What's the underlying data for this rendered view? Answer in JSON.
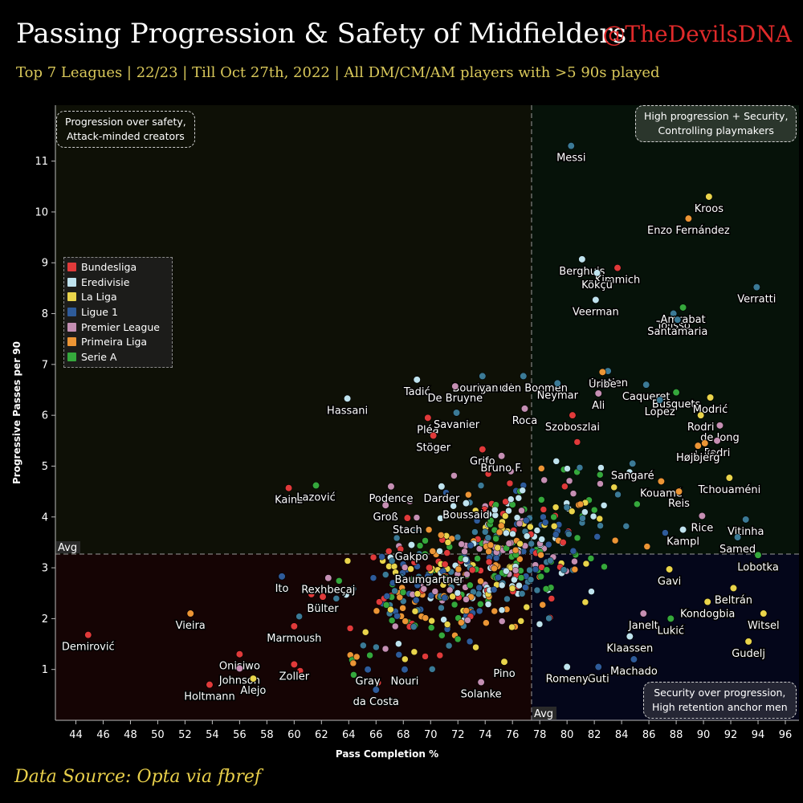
{
  "header": {
    "title": "Passing Progression & Safety of Midfielders",
    "handle": "@TheDevilsDNA",
    "subtitle": "Top 7 Leagues | 22/23 | Till Oct 27th, 2022 | All DM/CM/AM players with >5 90s played"
  },
  "footer": {
    "source": "Data Source: Opta via fbref"
  },
  "quadrants": {
    "top_left": [
      "Progression over safety,",
      "Attack-minded creators"
    ],
    "top_right": [
      "High progression + Security,",
      "Controlling playmakers"
    ],
    "bottom_right": [
      "Security over progression,",
      "High retention anchor men"
    ]
  },
  "colors": {
    "Bundesliga": "#e03a3a",
    "Eredivisie": "#bfe3ee",
    "La Liga": "#e9d44b",
    "Ligue 1": "#2e5b9a",
    "Premier League": "#c58fb3",
    "Primeira Liga": "#ec9535",
    "Serie A": "#35a83c",
    "Unlabeled": "#3b7a96"
  },
  "chart_data": {
    "type": "scatter",
    "title": "Passing Progression & Safety of Midfielders",
    "xlabel": "Pass Completion %",
    "ylabel": "Progressive Passes per 90",
    "xlim": [
      42.5,
      97
    ],
    "ylim": [
      0,
      12.1
    ],
    "x_ticks": [
      44,
      46,
      48,
      50,
      52,
      54,
      56,
      58,
      60,
      62,
      64,
      66,
      68,
      70,
      72,
      74,
      76,
      78,
      80,
      82,
      84,
      86,
      88,
      90,
      92,
      94,
      96
    ],
    "y_ticks": [
      1,
      2,
      3,
      4,
      5,
      6,
      7,
      8,
      9,
      10,
      11
    ],
    "avg_x": 77.4,
    "avg_y": 3.27,
    "avg_label": "Avg",
    "legend": [
      "Bundesliga",
      "Eredivisie",
      "La Liga",
      "Ligue 1",
      "Premier League",
      "Primeira Liga",
      "Serie A"
    ],
    "legend_position": "left",
    "labeled_points": [
      {
        "name": "Messi",
        "x": 80.3,
        "y": 11.3,
        "league": "Unlabeled"
      },
      {
        "name": "Kroos",
        "x": 90.4,
        "y": 10.3,
        "league": "La Liga"
      },
      {
        "name": "Enzo Fernández",
        "x": 88.9,
        "y": 9.87,
        "league": "Primeira Liga"
      },
      {
        "name": "Berghuis",
        "x": 81.1,
        "y": 9.07,
        "league": "Eredivisie"
      },
      {
        "name": "Kimmich",
        "x": 83.7,
        "y": 8.9,
        "league": "Bundesliga"
      },
      {
        "name": "Kökçü",
        "x": 82.2,
        "y": 8.8,
        "league": "Eredivisie"
      },
      {
        "name": "Verratti",
        "x": 93.9,
        "y": 8.52,
        "league": "Unlabeled"
      },
      {
        "name": "Veerman",
        "x": 82.1,
        "y": 8.27,
        "league": "Eredivisie"
      },
      {
        "name": "Tolisso",
        "x": 87.8,
        "y": 8.0,
        "league": "Unlabeled"
      },
      {
        "name": "Amrabat",
        "x": 88.5,
        "y": 8.12,
        "league": "Serie A"
      },
      {
        "name": "Santamaria",
        "x": 88.1,
        "y": 7.88,
        "league": "Unlabeled"
      },
      {
        "name": "Gastien",
        "x": 83.0,
        "y": 6.87,
        "league": "Unlabeled"
      },
      {
        "name": "Uribe",
        "x": 82.6,
        "y": 6.85,
        "league": "Primeira Liga"
      },
      {
        "name": "Caqueret",
        "x": 85.8,
        "y": 6.6,
        "league": "Unlabeled"
      },
      {
        "name": "Bourigeaud",
        "x": 73.8,
        "y": 6.77,
        "league": "Unlabeled"
      },
      {
        "name": "van den Boomen",
        "x": 76.8,
        "y": 6.77,
        "league": "Unlabeled"
      },
      {
        "name": "Tadić",
        "x": 69.0,
        "y": 6.7,
        "league": "Eredivisie"
      },
      {
        "name": "Neymar",
        "x": 79.3,
        "y": 6.63,
        "league": "Unlabeled"
      },
      {
        "name": "Ali",
        "x": 82.3,
        "y": 6.43,
        "league": "Premier League"
      },
      {
        "name": "Busquets",
        "x": 88.0,
        "y": 6.45,
        "league": "Serie A"
      },
      {
        "name": "De Bruyne",
        "x": 71.8,
        "y": 6.57,
        "league": "Premier League"
      },
      {
        "name": "Hassani",
        "x": 63.9,
        "y": 6.33,
        "league": "Eredivisie"
      },
      {
        "name": "Lopez",
        "x": 86.8,
        "y": 6.3,
        "league": "Unlabeled"
      },
      {
        "name": "Modrić",
        "x": 90.5,
        "y": 6.35,
        "league": "La Liga"
      },
      {
        "name": "Roca",
        "x": 76.9,
        "y": 6.13,
        "league": "Premier League"
      },
      {
        "name": "Pléa",
        "x": 69.8,
        "y": 5.95,
        "league": "Bundesliga"
      },
      {
        "name": "Rodri",
        "x": 89.8,
        "y": 6.0,
        "league": "La Liga"
      },
      {
        "name": "Savanier",
        "x": 71.9,
        "y": 6.05,
        "league": "Unlabeled"
      },
      {
        "name": "de Jong",
        "x": 91.2,
        "y": 5.8,
        "league": "Premier League"
      },
      {
        "name": "Szoboszlai",
        "x": 80.4,
        "y": 6.0,
        "league": "Bundesliga"
      },
      {
        "name": "Stöger",
        "x": 70.2,
        "y": 5.6,
        "league": "Bundesliga"
      },
      {
        "name": "Pedri",
        "x": 91.0,
        "y": 5.5,
        "league": "Premier League"
      },
      {
        "name": "Luís",
        "x": 90.1,
        "y": 5.45,
        "league": "Primeira Liga"
      },
      {
        "name": "Grifo",
        "x": 73.8,
        "y": 5.33,
        "league": "Bundesliga"
      },
      {
        "name": "Bruno F.",
        "x": 75.2,
        "y": 5.2,
        "league": "Premier League"
      },
      {
        "name": "Højbjerg",
        "x": 89.6,
        "y": 5.4,
        "league": "Primeira Liga"
      },
      {
        "name": "Sangaré",
        "x": 84.8,
        "y": 5.05,
        "league": "Unlabeled"
      },
      {
        "name": "Tchouaméni",
        "x": 91.9,
        "y": 4.77,
        "league": "La Liga"
      },
      {
        "name": "Kouamé",
        "x": 86.9,
        "y": 4.7,
        "league": "Primeira Liga"
      },
      {
        "name": "Reis",
        "x": 88.2,
        "y": 4.5,
        "league": "Primeira Liga"
      },
      {
        "name": "Kainz",
        "x": 59.6,
        "y": 4.57,
        "league": "Bundesliga"
      },
      {
        "name": "Lazović",
        "x": 61.6,
        "y": 4.62,
        "league": "Serie A"
      },
      {
        "name": "Podence",
        "x": 67.1,
        "y": 4.6,
        "league": "Premier League"
      },
      {
        "name": "Darder",
        "x": 70.8,
        "y": 4.6,
        "league": "Eredivisie"
      },
      {
        "name": "Boussaid",
        "x": 72.6,
        "y": 4.27,
        "league": "Eredivisie"
      },
      {
        "name": "Groß",
        "x": 66.7,
        "y": 4.23,
        "league": "Premier League"
      },
      {
        "name": "Stach",
        "x": 68.3,
        "y": 3.98,
        "league": "Bundesliga"
      },
      {
        "name": "Rice",
        "x": 89.9,
        "y": 4.02,
        "league": "Premier League"
      },
      {
        "name": "Vitinha",
        "x": 93.1,
        "y": 3.95,
        "league": "Unlabeled"
      },
      {
        "name": "Kampl",
        "x": 88.5,
        "y": 3.75,
        "league": "Eredivisie"
      },
      {
        "name": "Samed",
        "x": 92.5,
        "y": 3.6,
        "league": "Unlabeled"
      },
      {
        "name": "Gakpo",
        "x": 68.6,
        "y": 3.45,
        "league": "Eredivisie"
      },
      {
        "name": "Lobotka",
        "x": 94.0,
        "y": 3.25,
        "league": "Serie A"
      },
      {
        "name": "Rexhbeçaj",
        "x": 62.5,
        "y": 2.8,
        "league": "Premier League"
      },
      {
        "name": "Baumgartner",
        "x": 69.9,
        "y": 3.0,
        "league": "Bundesliga"
      },
      {
        "name": "Gavi",
        "x": 87.5,
        "y": 2.97,
        "league": "La Liga"
      },
      {
        "name": "Beltrán",
        "x": 92.2,
        "y": 2.6,
        "league": "La Liga"
      },
      {
        "name": "Ito",
        "x": 59.1,
        "y": 2.83,
        "league": "Ligue 1"
      },
      {
        "name": "Bülter",
        "x": 62.1,
        "y": 2.43,
        "league": "Bundesliga"
      },
      {
        "name": "Kondogbia",
        "x": 90.3,
        "y": 2.33,
        "league": "La Liga"
      },
      {
        "name": "Vieira",
        "x": 52.4,
        "y": 2.1,
        "league": "Primeira Liga"
      },
      {
        "name": "Janelt",
        "x": 85.6,
        "y": 2.1,
        "league": "Premier League"
      },
      {
        "name": "Lukić",
        "x": 87.6,
        "y": 2.0,
        "league": "Serie A"
      },
      {
        "name": "Witsel",
        "x": 94.4,
        "y": 2.1,
        "league": "La Liga"
      },
      {
        "name": "Marmoush",
        "x": 60.0,
        "y": 1.85,
        "league": "Bundesliga"
      },
      {
        "name": "Klaassen",
        "x": 84.6,
        "y": 1.65,
        "league": "Eredivisie"
      },
      {
        "name": "Demirović",
        "x": 44.9,
        "y": 1.68,
        "league": "Bundesliga"
      },
      {
        "name": "Gudelj",
        "x": 93.3,
        "y": 1.55,
        "league": "La Liga"
      },
      {
        "name": "Onisiwo",
        "x": 56.0,
        "y": 1.3,
        "league": "Bundesliga"
      },
      {
        "name": "Machado",
        "x": 84.9,
        "y": 1.2,
        "league": "Ligue 1"
      },
      {
        "name": "Pino",
        "x": 75.4,
        "y": 1.15,
        "league": "La Liga"
      },
      {
        "name": "Zoller",
        "x": 60.0,
        "y": 1.1,
        "league": "Bundesliga"
      },
      {
        "name": "Johnson",
        "x": 56.0,
        "y": 1.02,
        "league": "Premier League"
      },
      {
        "name": "Gray",
        "x": 65.4,
        "y": 1.0,
        "league": "Ligue 1"
      },
      {
        "name": "Nouri",
        "x": 68.1,
        "y": 1.0,
        "league": "Ligue 1"
      },
      {
        "name": "Guti",
        "x": 82.3,
        "y": 1.05,
        "league": "Ligue 1"
      },
      {
        "name": "Romeny",
        "x": 80.0,
        "y": 1.05,
        "league": "Eredivisie"
      },
      {
        "name": "Alejo",
        "x": 57.0,
        "y": 0.82,
        "league": "La Liga"
      },
      {
        "name": "Holtmann",
        "x": 53.8,
        "y": 0.7,
        "league": "Bundesliga"
      },
      {
        "name": "Solanke",
        "x": 73.7,
        "y": 0.75,
        "league": "Premier League"
      },
      {
        "name": "da Costa",
        "x": 66.0,
        "y": 0.6,
        "league": "Ligue 1"
      }
    ]
  }
}
